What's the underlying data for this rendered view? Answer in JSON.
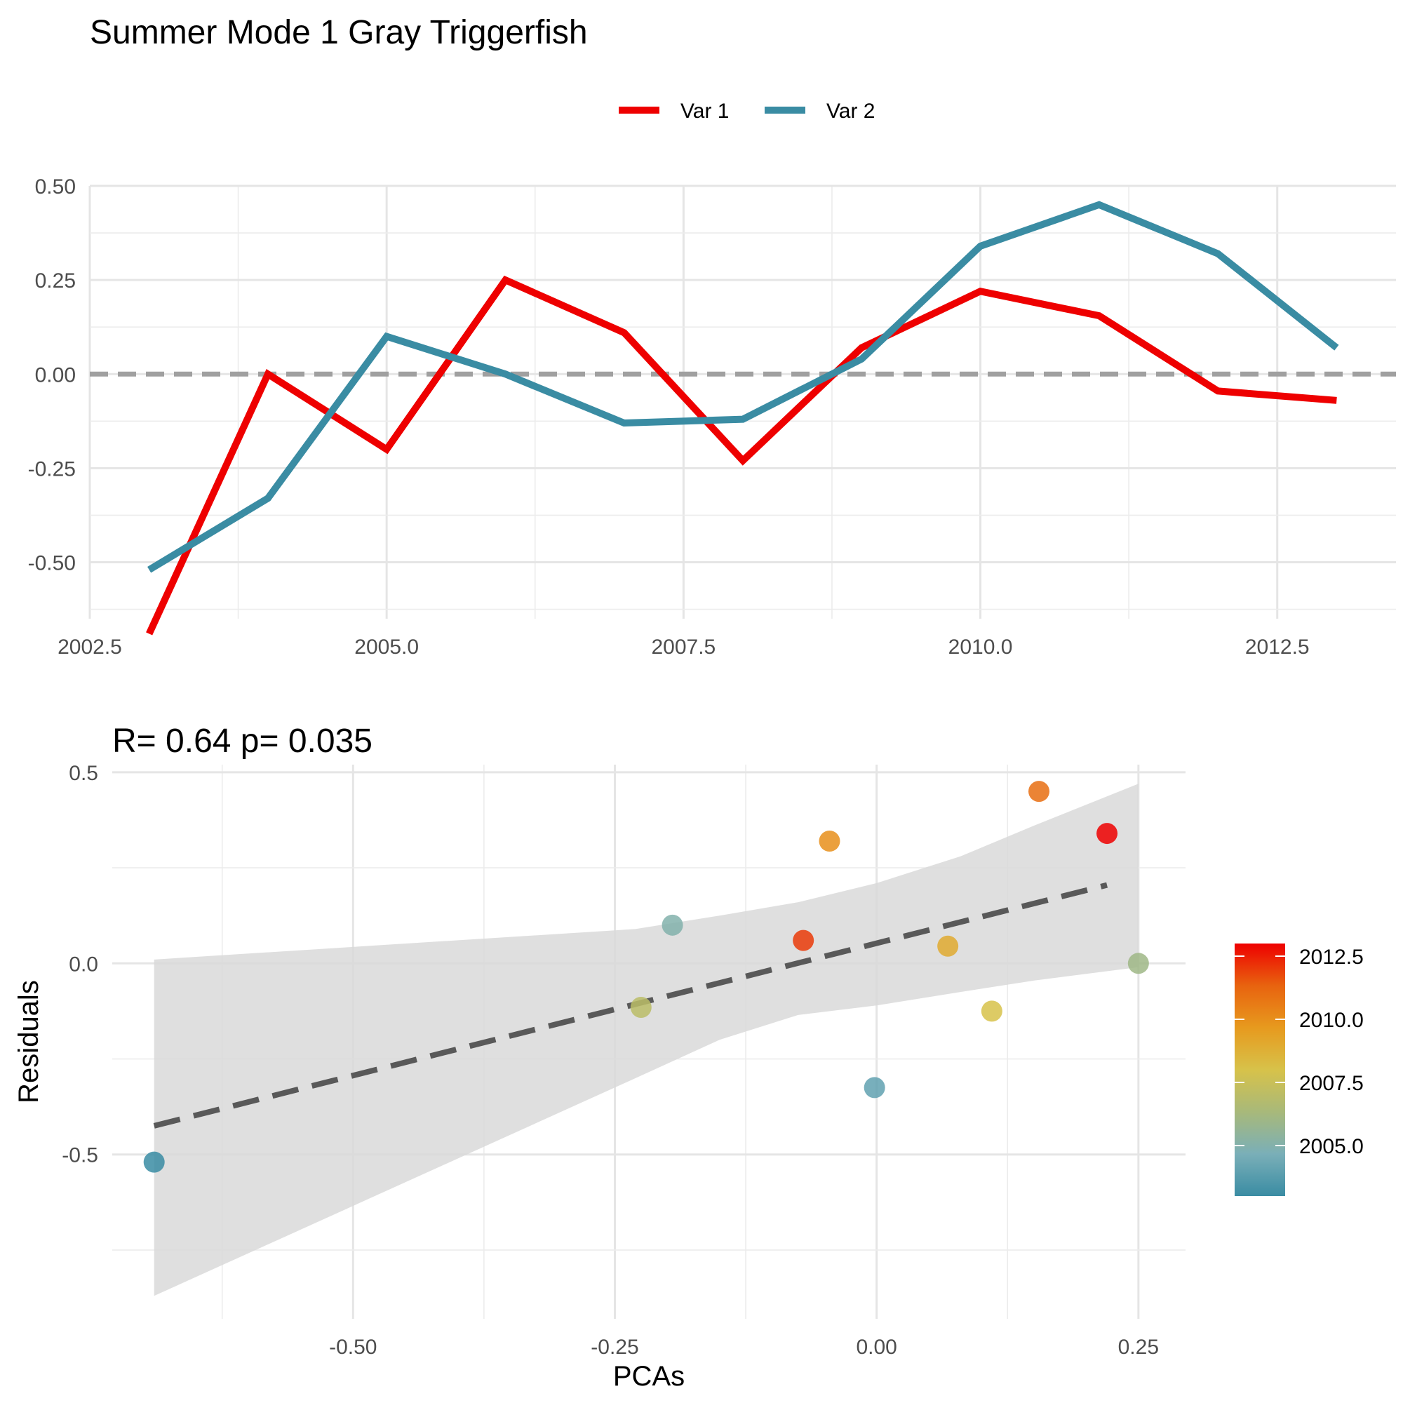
{
  "title": "Summer Mode 1 Gray Triggerfish",
  "chart_data": [
    {
      "type": "line",
      "legend": {
        "position": "top",
        "entries": [
          "Var 1",
          "Var 2"
        ]
      },
      "x": [
        2003,
        2004,
        2005,
        2006,
        2007,
        2008,
        2009,
        2010,
        2011,
        2012,
        2013
      ],
      "series": [
        {
          "name": "Var 1",
          "color": "#ee0000",
          "values": [
            -0.69,
            0.0,
            -0.2,
            0.25,
            0.11,
            -0.23,
            0.07,
            0.22,
            0.155,
            -0.045,
            -0.07
          ]
        },
        {
          "name": "Var 2",
          "color": "#3a8ca3",
          "values": [
            -0.52,
            -0.33,
            0.1,
            0.0,
            -0.13,
            -0.12,
            0.04,
            0.34,
            0.45,
            0.32,
            0.07
          ]
        }
      ],
      "reference_line": {
        "y": 0,
        "style": "dashed",
        "color": "#a0a0a0"
      },
      "xlim": [
        2002.5,
        2013.5
      ],
      "ylim": [
        -0.65,
        0.5
      ],
      "xticks": [
        "2002.5",
        "2005.0",
        "2007.5",
        "2010.0",
        "2012.5"
      ],
      "yticks": [
        "-0.50",
        "-0.25",
        "0.00",
        "0.25",
        "0.50"
      ],
      "grid": true,
      "xlabel": "",
      "ylabel": ""
    },
    {
      "type": "scatter",
      "title": "R= 0.64  p= 0.035",
      "xlabel": "PCAs",
      "ylabel": "Residuals",
      "points": [
        {
          "x": -0.69,
          "y": -0.52,
          "year": 2003
        },
        {
          "x": -0.225,
          "y": -0.115,
          "year": 2007
        },
        {
          "x": -0.195,
          "y": 0.1,
          "year": 2005
        },
        {
          "x": -0.07,
          "y": 0.06,
          "year": 2012
        },
        {
          "x": -0.045,
          "y": 0.32,
          "year": 2010
        },
        {
          "x": -0.002,
          "y": -0.325,
          "year": 2004
        },
        {
          "x": 0.068,
          "y": 0.045,
          "year": 2009
        },
        {
          "x": 0.11,
          "y": -0.125,
          "year": 2008
        },
        {
          "x": 0.155,
          "y": 0.45,
          "year": 2011
        },
        {
          "x": 0.22,
          "y": 0.34,
          "year": 2013
        },
        {
          "x": 0.25,
          "y": 0.0,
          "year": 2006
        }
      ],
      "fit_line": {
        "style": "dashed",
        "color": "#595959",
        "x": [
          -0.69,
          0.22
        ],
        "y": [
          -0.425,
          0.205
        ]
      },
      "confidence_band": {
        "color": "#d9d9d9",
        "x": [
          -0.69,
          -0.23,
          -0.15,
          -0.075,
          0.0,
          0.08,
          0.15,
          0.25
        ],
        "upper": [
          0.01,
          0.09,
          0.125,
          0.16,
          0.21,
          0.28,
          0.36,
          0.47
        ],
        "lower": [
          -0.87,
          -0.3,
          -0.2,
          -0.135,
          -0.11,
          -0.075,
          -0.045,
          -0.01
        ]
      },
      "xlim": [
        -0.73,
        0.295
      ],
      "ylim": [
        -0.93,
        0.52
      ],
      "xticks": [
        "-0.50",
        "-0.25",
        "0.00",
        "0.25"
      ],
      "yticks": [
        "-0.5",
        "0.0",
        "0.5"
      ],
      "grid": true,
      "colorbar": {
        "position": "right",
        "range": [
          2003,
          2013
        ],
        "ticks": [
          "2005.0",
          "2007.5",
          "2010.0",
          "2012.5"
        ],
        "colors": [
          "#3a8ca3",
          "#7aafb8",
          "#a8b97a",
          "#d7c24a",
          "#e79a1e",
          "#e8630f",
          "#ee0000"
        ]
      }
    }
  ]
}
